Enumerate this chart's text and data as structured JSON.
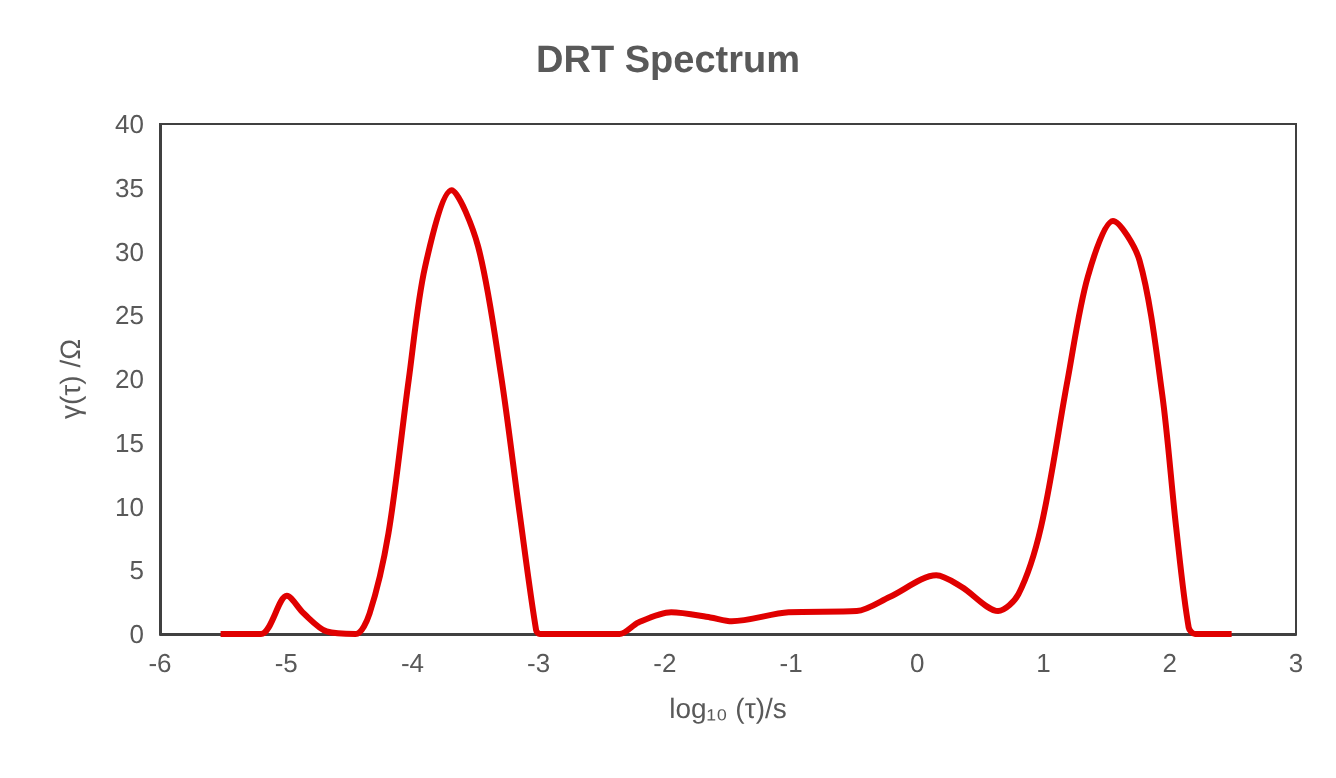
{
  "chart_data": {
    "type": "line",
    "title": "DRT Spectrum",
    "xlabel": "log₁₀ (τ)/s",
    "ylabel": "γ(τ) /Ω",
    "x": [
      -5.52,
      -5.2,
      -4.995,
      -4.86,
      -4.68,
      -4.45,
      -4.34,
      -4.19,
      -4.03,
      -3.9,
      -3.69,
      -3.48,
      -3.3,
      -3.15,
      -3.02,
      -2.99,
      -2.36,
      -2.21,
      -1.95,
      -1.64,
      -1.47,
      -1.02,
      -0.48,
      -0.22,
      0.15,
      0.35,
      0.64,
      0.8,
      0.98,
      1.19,
      1.35,
      1.55,
      1.76,
      1.94,
      2.05,
      2.15,
      2.2,
      2.49
    ],
    "series": [
      {
        "color": "#e00000",
        "values": [
          0,
          0,
          3.0,
          1.6,
          0.2,
          0,
          1.6,
          7.9,
          19.9,
          28.8,
          34.8,
          30.4,
          20.4,
          9.4,
          0.3,
          0,
          0,
          0.9,
          1.7,
          1.3,
          1.0,
          1.7,
          1.8,
          2.9,
          4.6,
          3.7,
          1.8,
          3.1,
          8.4,
          19.9,
          28.0,
          32.4,
          29.3,
          18.8,
          8.4,
          0.5,
          0,
          0
        ]
      }
    ],
    "xlim": [
      -6,
      3
    ],
    "xticks": [
      -6,
      -5,
      -4,
      -3,
      -2,
      -1,
      0,
      1,
      2,
      3
    ],
    "ylim": [
      0,
      40
    ],
    "yticks": [
      0,
      5,
      10,
      15,
      20,
      25,
      30,
      35,
      40
    ],
    "grid": false,
    "marker": "none",
    "line_style": "solid"
  }
}
